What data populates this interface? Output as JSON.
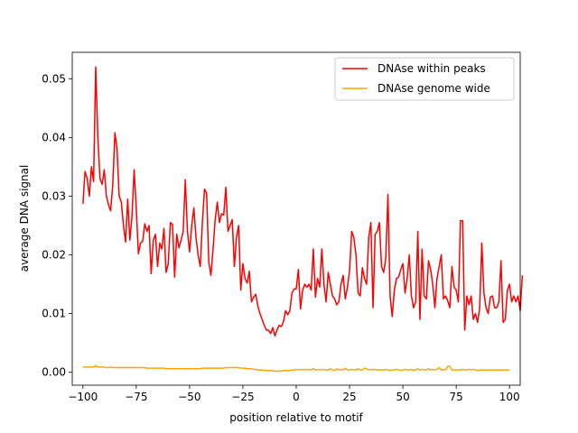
{
  "chart_data": {
    "type": "line",
    "title": "",
    "xlabel": "position relative to motif",
    "ylabel": "average DNA signal",
    "xlim": [
      -105,
      105
    ],
    "ylim": [
      -0.0022,
      0.0545
    ],
    "xticks": [
      -100,
      -75,
      -50,
      -25,
      0,
      25,
      50,
      75,
      100
    ],
    "xtick_labels": [
      "−100",
      "−75",
      "−50",
      "−25",
      "0",
      "25",
      "50",
      "75",
      "100"
    ],
    "yticks": [
      0.0,
      0.01,
      0.02,
      0.03,
      0.04,
      0.05
    ],
    "ytick_labels": [
      "0.00",
      "0.01",
      "0.02",
      "0.03",
      "0.04",
      "0.05"
    ],
    "grid": false,
    "legend_position": "top-right",
    "x_start": -100,
    "x_step": 1,
    "series": [
      {
        "name": "DNAse within peaks",
        "color": "#ff0000",
        "values": [
          0.0287,
          0.0342,
          0.033,
          0.03,
          0.035,
          0.0325,
          0.052,
          0.04,
          0.033,
          0.032,
          0.0345,
          0.03,
          0.0285,
          0.0275,
          0.032,
          0.0408,
          0.038,
          0.03,
          0.029,
          0.025,
          0.0222,
          0.0295,
          0.0225,
          0.0265,
          0.0345,
          0.028,
          0.0202,
          0.022,
          0.0223,
          0.0253,
          0.024,
          0.025,
          0.0168,
          0.0225,
          0.0235,
          0.018,
          0.022,
          0.021,
          0.0245,
          0.017,
          0.0185,
          0.0255,
          0.0252,
          0.0162,
          0.0235,
          0.0212,
          0.0225,
          0.024,
          0.0328,
          0.024,
          0.0205,
          0.025,
          0.028,
          0.023,
          0.02,
          0.018,
          0.0255,
          0.0312,
          0.0305,
          0.0188,
          0.0165,
          0.021,
          0.026,
          0.029,
          0.0255,
          0.027,
          0.0268,
          0.0315,
          0.024,
          0.025,
          0.026,
          0.018,
          0.023,
          0.025,
          0.014,
          0.0185,
          0.016,
          0.0152,
          0.0172,
          0.012,
          0.0128,
          0.0133,
          0.0113,
          0.01,
          0.009,
          0.008,
          0.0072,
          0.0072,
          0.0066,
          0.0076,
          0.0062,
          0.0072,
          0.008,
          0.0078,
          0.0086,
          0.0105,
          0.0098,
          0.0105,
          0.0135,
          0.0142,
          0.0142,
          0.0175,
          0.0108,
          0.014,
          0.015,
          0.0145,
          0.015,
          0.014,
          0.021,
          0.0128,
          0.016,
          0.0145,
          0.021,
          0.015,
          0.012,
          0.017,
          0.015,
          0.013,
          0.0125,
          0.0115,
          0.012,
          0.015,
          0.0165,
          0.0125,
          0.0145,
          0.0173,
          0.024,
          0.023,
          0.02,
          0.0135,
          0.013,
          0.0178,
          0.016,
          0.015,
          0.023,
          0.0255,
          0.011,
          0.0235,
          0.024,
          0.0255,
          0.018,
          0.017,
          0.0195,
          0.0303,
          0.013,
          0.0095,
          0.014,
          0.016,
          0.0162,
          0.0175,
          0.0185,
          0.0135,
          0.016,
          0.02,
          0.013,
          0.011,
          0.012,
          0.024,
          0.009,
          0.021,
          0.013,
          0.0125,
          0.019,
          0.0175,
          0.015,
          0.011,
          0.016,
          0.018,
          0.02,
          0.0125,
          0.013,
          0.0122,
          0.011,
          0.018,
          0.0145,
          0.014,
          0.012,
          0.0258,
          0.0258,
          0.0072,
          0.013,
          0.0115,
          0.013,
          0.009,
          0.01,
          0.0085,
          0.011,
          0.022,
          0.0135,
          0.011,
          0.01,
          0.0128,
          0.013,
          0.011,
          0.011,
          0.012,
          0.019,
          0.0085,
          0.009,
          0.014,
          0.015,
          0.012,
          0.013,
          0.012,
          0.013,
          0.0105,
          0.0165
        ]
      },
      {
        "name": "DNAse genome wide",
        "color": "#ffa500",
        "values": [
          0.0009,
          0.0009,
          0.0009,
          0.0009,
          0.0009,
          0.0009,
          0.0011,
          0.0009,
          0.0009,
          0.0009,
          0.0009,
          0.0008,
          0.0008,
          0.0009,
          0.0008,
          0.0008,
          0.0008,
          0.0008,
          0.0008,
          0.0008,
          0.0008,
          0.0008,
          0.0008,
          0.0008,
          0.0008,
          0.0008,
          0.0008,
          0.0008,
          0.0008,
          0.0008,
          0.0007,
          0.0007,
          0.0007,
          0.0007,
          0.0007,
          0.0007,
          0.0007,
          0.0007,
          0.0007,
          0.0006,
          0.0006,
          0.0006,
          0.0006,
          0.0006,
          0.0006,
          0.0006,
          0.0006,
          0.0006,
          0.0006,
          0.0006,
          0.0006,
          0.0006,
          0.0006,
          0.0006,
          0.0006,
          0.0006,
          0.0007,
          0.0007,
          0.0007,
          0.0007,
          0.0007,
          0.0007,
          0.0007,
          0.0007,
          0.0007,
          0.0007,
          0.0007,
          0.0008,
          0.0008,
          0.0008,
          0.0008,
          0.0008,
          0.0008,
          0.0008,
          0.0007,
          0.0007,
          0.0007,
          0.0006,
          0.0006,
          0.0006,
          0.0005,
          0.0005,
          0.0004,
          0.0004,
          0.0004,
          0.0003,
          0.0003,
          0.0003,
          0.0003,
          0.0002,
          0.0002,
          0.0002,
          0.0002,
          0.0002,
          0.0003,
          0.0003,
          0.0003,
          0.0003,
          0.0004,
          0.0004,
          0.0005,
          0.0004,
          0.0005,
          0.0004,
          0.0005,
          0.0004,
          0.0005,
          0.0004,
          0.0006,
          0.0004,
          0.0004,
          0.0005,
          0.0004,
          0.0005,
          0.0004,
          0.0004,
          0.0006,
          0.0004,
          0.0003,
          0.0006,
          0.0004,
          0.0005,
          0.0004,
          0.0007,
          0.0004,
          0.0004,
          0.0005,
          0.0004,
          0.0004,
          0.0006,
          0.0004,
          0.0004,
          0.0007,
          0.0006,
          0.0004,
          0.0005,
          0.0004,
          0.0005,
          0.0004,
          0.0004,
          0.0004,
          0.0004,
          0.0005,
          0.0004,
          0.0003,
          0.0004,
          0.0004,
          0.0005,
          0.0004,
          0.0003,
          0.0004,
          0.0005,
          0.0004,
          0.0004,
          0.0005,
          0.0003,
          0.0004,
          0.0006,
          0.0004,
          0.0005,
          0.0004,
          0.0004,
          0.0006,
          0.0004,
          0.0005,
          0.0004,
          0.0005,
          0.0008,
          0.0004,
          0.0005,
          0.0004,
          0.001,
          0.001,
          0.0004,
          0.0004,
          0.0004,
          0.0004,
          0.0004,
          0.0005,
          0.0004,
          0.0004,
          0.0005,
          0.0004,
          0.0005,
          0.0004,
          0.0003,
          0.0004,
          0.0004,
          0.0004,
          0.0004,
          0.0004,
          0.0004,
          0.0004,
          0.0004,
          0.0004,
          0.0004,
          0.0004,
          0.0004,
          0.0004,
          0.0004,
          0.0004
        ]
      }
    ]
  }
}
